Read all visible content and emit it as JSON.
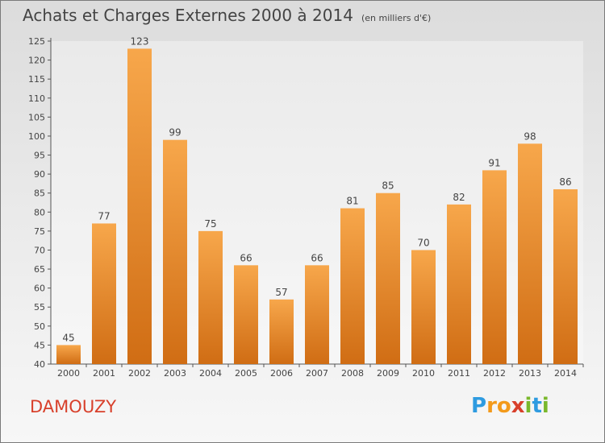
{
  "title": "Achats et Charges Externes 2000 à 2014",
  "subtitle": "(en milliers d'€)",
  "commune": "DAMOUZY",
  "logo": {
    "letters": [
      "P",
      "r",
      "o",
      "x",
      "i",
      "t",
      "i"
    ],
    "colors": [
      "#2e9be0",
      "#f39a1b",
      "#f39a1b",
      "#d8402b",
      "#7ab82c",
      "#2e9be0",
      "#7ab82c"
    ]
  },
  "colors": {
    "bar_top": "#f7a74b",
    "bar_bottom": "#d06d14",
    "text": "#444444",
    "commune": "#d8402b"
  },
  "chart_data": {
    "type": "bar",
    "title": "Achats et Charges Externes 2000 à 2014",
    "subtitle": "(en milliers d'€)",
    "xlabel": "",
    "ylabel": "",
    "categories": [
      "2000",
      "2001",
      "2002",
      "2003",
      "2004",
      "2005",
      "2006",
      "2007",
      "2008",
      "2009",
      "2010",
      "2011",
      "2012",
      "2013",
      "2014"
    ],
    "values": [
      45,
      77,
      123,
      99,
      75,
      66,
      57,
      66,
      81,
      85,
      70,
      82,
      91,
      98,
      86
    ],
    "ylim": [
      40,
      125
    ],
    "yticks": [
      40,
      45,
      50,
      55,
      60,
      65,
      70,
      75,
      80,
      85,
      90,
      95,
      100,
      105,
      110,
      115,
      120,
      125
    ],
    "grid": false,
    "data_labels": true
  }
}
